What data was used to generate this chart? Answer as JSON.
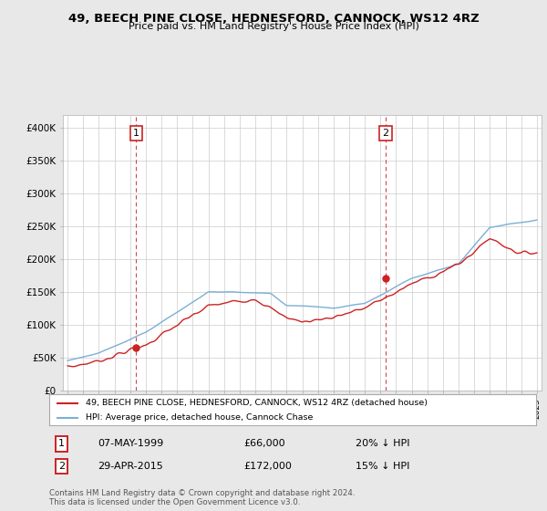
{
  "title": "49, BEECH PINE CLOSE, HEDNESFORD, CANNOCK, WS12 4RZ",
  "subtitle": "Price paid vs. HM Land Registry's House Price Index (HPI)",
  "hpi_color": "#7bafd4",
  "price_color": "#cc2222",
  "vline_color": "#cc3333",
  "annotation1": {
    "label": "1",
    "year": 1999.37,
    "price": 66000,
    "text": "07-MAY-1999",
    "amount": "£66,000",
    "pct": "20% ↓ HPI"
  },
  "annotation2": {
    "label": "2",
    "year": 2015.33,
    "price": 172000,
    "text": "29-APR-2015",
    "amount": "£172,000",
    "pct": "15% ↓ HPI"
  },
  "legend_line1": "49, BEECH PINE CLOSE, HEDNESFORD, CANNOCK, WS12 4RZ (detached house)",
  "legend_line2": "HPI: Average price, detached house, Cannock Chase",
  "footer": "Contains HM Land Registry data © Crown copyright and database right 2024.\nThis data is licensed under the Open Government Licence v3.0.",
  "ylim": [
    0,
    420000
  ],
  "yticks": [
    0,
    50000,
    100000,
    150000,
    200000,
    250000,
    300000,
    350000,
    400000
  ],
  "ytick_labels": [
    "£0",
    "£50K",
    "£100K",
    "£150K",
    "£200K",
    "£250K",
    "£300K",
    "£350K",
    "£400K"
  ],
  "background_color": "#e8e8e8",
  "plot_background": "#ffffff",
  "grid_color": "#cccccc",
  "xlim_left": 1994.7,
  "xlim_right": 2025.3
}
